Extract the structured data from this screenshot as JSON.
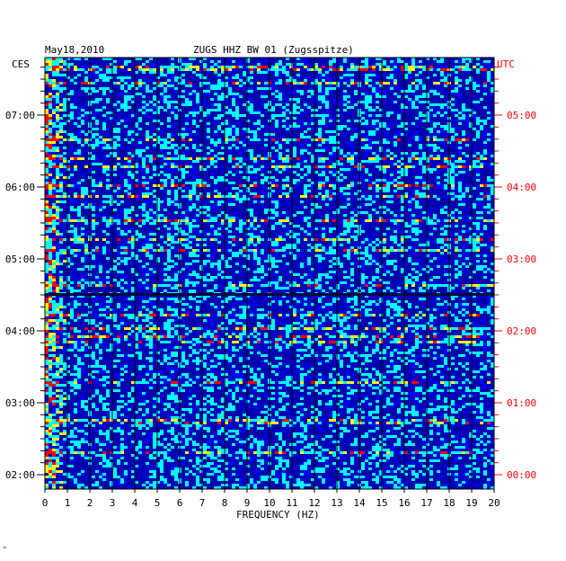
{
  "chart_data": {
    "type": "heatmap",
    "title": "ZUGS HHZ BW 01 (Zugsspitze)",
    "date": "May18,2010",
    "left_timezone": "CES",
    "right_timezone": "UTC",
    "xlabel": "FREQUENCY (HZ)",
    "xlim": [
      0,
      20
    ],
    "x_ticks": [
      "0",
      "1",
      "2",
      "3",
      "4",
      "5",
      "6",
      "7",
      "8",
      "9",
      "10",
      "11",
      "12",
      "13",
      "14",
      "15",
      "16",
      "17",
      "18",
      "19",
      "20"
    ],
    "y_ticks_left": [
      "07:00",
      "06:00",
      "05:00",
      "04:00",
      "03:00",
      "02:00"
    ],
    "y_ticks_right": [
      "05:00",
      "04:00",
      "03:00",
      "02:00",
      "01:00",
      "00:00"
    ],
    "left_hours": [
      7,
      6,
      5,
      4,
      3,
      2
    ],
    "time_span_hours": 6,
    "colormap": [
      "#000080",
      "#0000ff",
      "#00ffff",
      "#ffff00",
      "#ff0000"
    ],
    "footnote": "\""
  }
}
